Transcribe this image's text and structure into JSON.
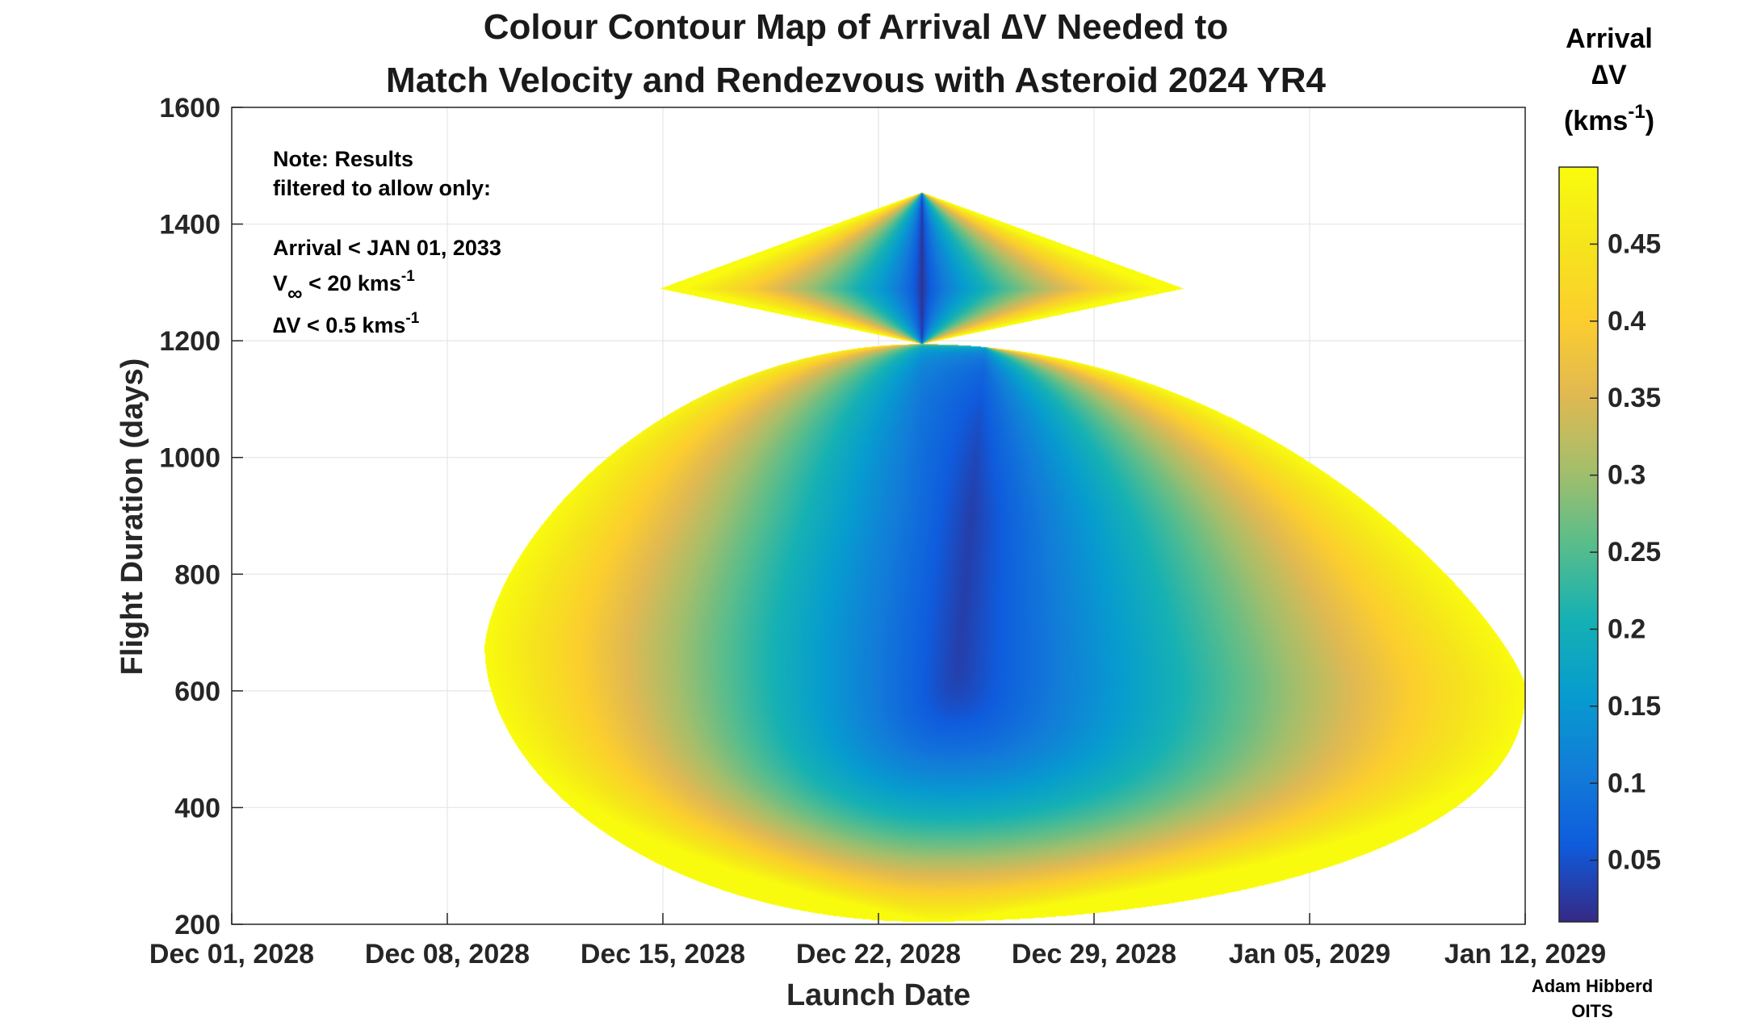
{
  "title_line1": "Colour Contour Map of Arrival ∆V Needed to",
  "title_line2": "Match Velocity and Rendezvous with Asteroid 2024 YR4",
  "note": {
    "line1": "Note: Results",
    "line2": "filtered to allow only:",
    "line3": "Arrival < JAN 01, 2033",
    "vinf_v": "V",
    "vinf_sub": "∞",
    "vinf_rest": " < 20 kms",
    "vinf_exp": "-1",
    "dv_rest": "∆V < 0.5 kms",
    "dv_exp": "-1"
  },
  "colorbar": {
    "title1": "Arrival",
    "title2": "∆V",
    "title3": "(kms",
    "title3_exp": "-1",
    "title3_close": ")",
    "ticks": [
      "0.05",
      "0.1",
      "0.15",
      "0.2",
      "0.25",
      "0.3",
      "0.35",
      "0.4",
      "0.45"
    ],
    "range": [
      0.01,
      0.5
    ],
    "colormap": "parula"
  },
  "credit": {
    "line1": "Adam Hibberd",
    "line2": "OITS"
  },
  "chart_data": {
    "type": "heatmap",
    "title": "Colour Contour Map of Arrival ∆V Needed to Match Velocity and Rendezvous with Asteroid 2024 YR4",
    "xlabel": "Launch Date",
    "ylabel": "Flight Duration (days)",
    "x_tick_labels": [
      "Dec 01, 2028",
      "Dec 08, 2028",
      "Dec 15, 2028",
      "Dec 22, 2028",
      "Dec 29, 2028",
      "Jan 05, 2029",
      "Jan 12, 2029"
    ],
    "xlim": [
      "Dec 01, 2028",
      "Jan 12, 2029"
    ],
    "y_ticks": [
      200,
      400,
      600,
      800,
      1000,
      1200,
      1400,
      1600
    ],
    "ylim": [
      200,
      1600
    ],
    "grid": true,
    "colorbar_label": "Arrival ∆V (kms-1)",
    "value_range": [
      0.01,
      0.5
    ],
    "regions": [
      {
        "name": "upper lobe",
        "duration_range": [
          1195,
          1455
        ],
        "launch_range": [
          "Dec 18, 2028",
          "Dec 31, 2028"
        ],
        "min_dv_launch": "Dec 23, 2028",
        "min_dv": 0.01
      },
      {
        "name": "lower lobe",
        "duration_range": [
          205,
          1195
        ],
        "launch_range": [
          "Dec 07, 2028",
          "Jan 10, 2029"
        ],
        "min_dv_launch": "Dec 24, 2028",
        "min_dv_duration": 800,
        "min_dv": 0.03
      }
    ]
  }
}
